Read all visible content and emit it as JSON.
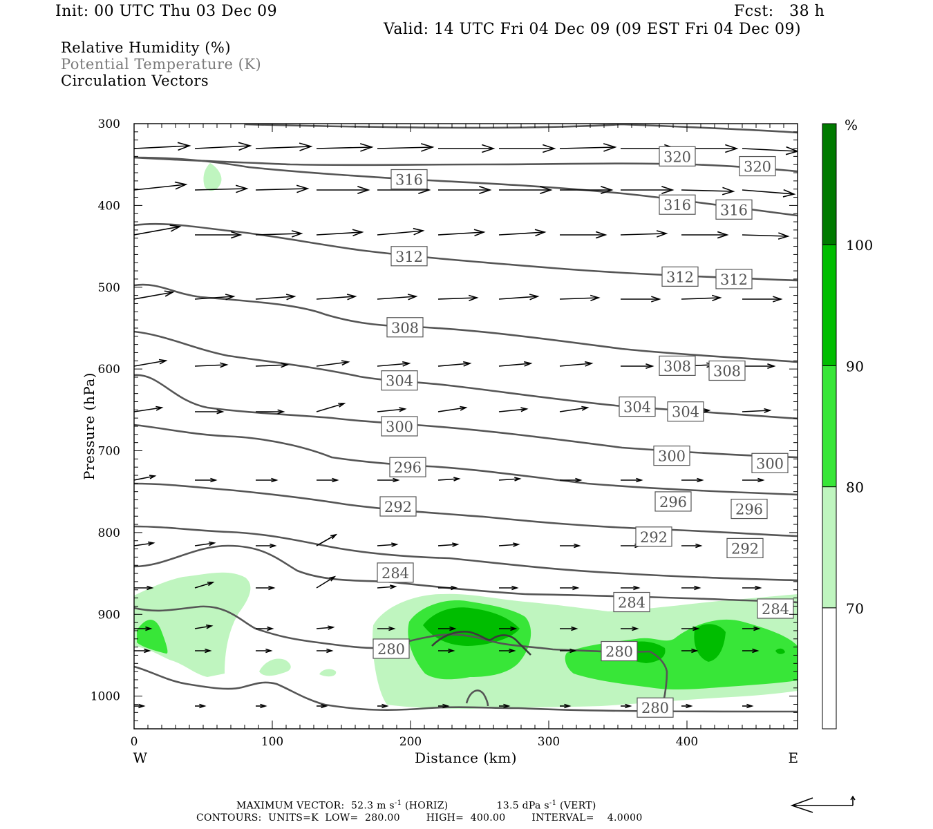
{
  "header": {
    "init": "Init: 00 UTC Thu 03 Dec 09",
    "fcst": "Fcst:   38 h",
    "valid": "Valid: 14 UTC Fri 04 Dec 09 (09 EST Fri 04 Dec 09)"
  },
  "legend": {
    "rh": "Relative Humidity (%)",
    "theta": "Potential Temperature (K)",
    "vectors": "Circulation Vectors"
  },
  "footer": {
    "max_vector_prefix": "MAXIMUM VECTOR:  52.3 m s",
    "max_vector_horiz": " (HORIZ)",
    "max_vector_vert_prefix": "13.5 dPa s",
    "max_vector_vert": " (VERT)",
    "exponent": "-1",
    "contours": "CONTOURS:  UNITS=K  LOW=  280.00        HIGH=  400.00        INTERVAL=    4.0000"
  },
  "chart_data": {
    "type": "cross-section",
    "xlabel": "Distance (km)",
    "ylabel": "Pressure (hPa)",
    "xlim": [
      0,
      480
    ],
    "ylim": [
      1040,
      300
    ],
    "x_ticks": [
      0,
      100,
      200,
      300,
      400
    ],
    "y_ticks": [
      300,
      400,
      500,
      600,
      700,
      800,
      900,
      1000
    ],
    "left_end_label": "W",
    "right_end_label": "E",
    "colorbar": {
      "unit": "%",
      "levels": [
        70,
        80,
        90,
        100
      ],
      "colors": [
        "#ffffff",
        "#bff5bf",
        "#38e638",
        "#00bd00",
        "#007a00"
      ]
    },
    "theta_contour_labels": [
      {
        "value": "320",
        "x": 393,
        "p": 340
      },
      {
        "value": "320",
        "x": 451,
        "p": 352
      },
      {
        "value": "316",
        "x": 199,
        "p": 368
      },
      {
        "value": "316",
        "x": 393,
        "p": 399
      },
      {
        "value": "316",
        "x": 434,
        "p": 405
      },
      {
        "value": "312",
        "x": 199,
        "p": 462
      },
      {
        "value": "312",
        "x": 395,
        "p": 487
      },
      {
        "value": "312",
        "x": 434,
        "p": 490
      },
      {
        "value": "308",
        "x": 196,
        "p": 549
      },
      {
        "value": "308",
        "x": 393,
        "p": 596
      },
      {
        "value": "308",
        "x": 429,
        "p": 602
      },
      {
        "value": "304",
        "x": 192,
        "p": 614
      },
      {
        "value": "304",
        "x": 364,
        "p": 646
      },
      {
        "value": "304",
        "x": 399,
        "p": 652
      },
      {
        "value": "300",
        "x": 192,
        "p": 670
      },
      {
        "value": "300",
        "x": 389,
        "p": 706
      },
      {
        "value": "300",
        "x": 460,
        "p": 715
      },
      {
        "value": "296",
        "x": 198,
        "p": 720
      },
      {
        "value": "296",
        "x": 390,
        "p": 762
      },
      {
        "value": "296",
        "x": 445,
        "p": 771
      },
      {
        "value": "292",
        "x": 191,
        "p": 768
      },
      {
        "value": "292",
        "x": 376,
        "p": 805
      },
      {
        "value": "292",
        "x": 442,
        "p": 819
      },
      {
        "value": "284",
        "x": 189,
        "p": 849
      },
      {
        "value": "284",
        "x": 360,
        "p": 885
      },
      {
        "value": "284",
        "x": 464,
        "p": 893
      },
      {
        "value": "280",
        "x": 186,
        "p": 942
      },
      {
        "value": "280",
        "x": 351,
        "p": 945
      },
      {
        "value": "280",
        "x": 377,
        "p": 1014
      }
    ]
  }
}
